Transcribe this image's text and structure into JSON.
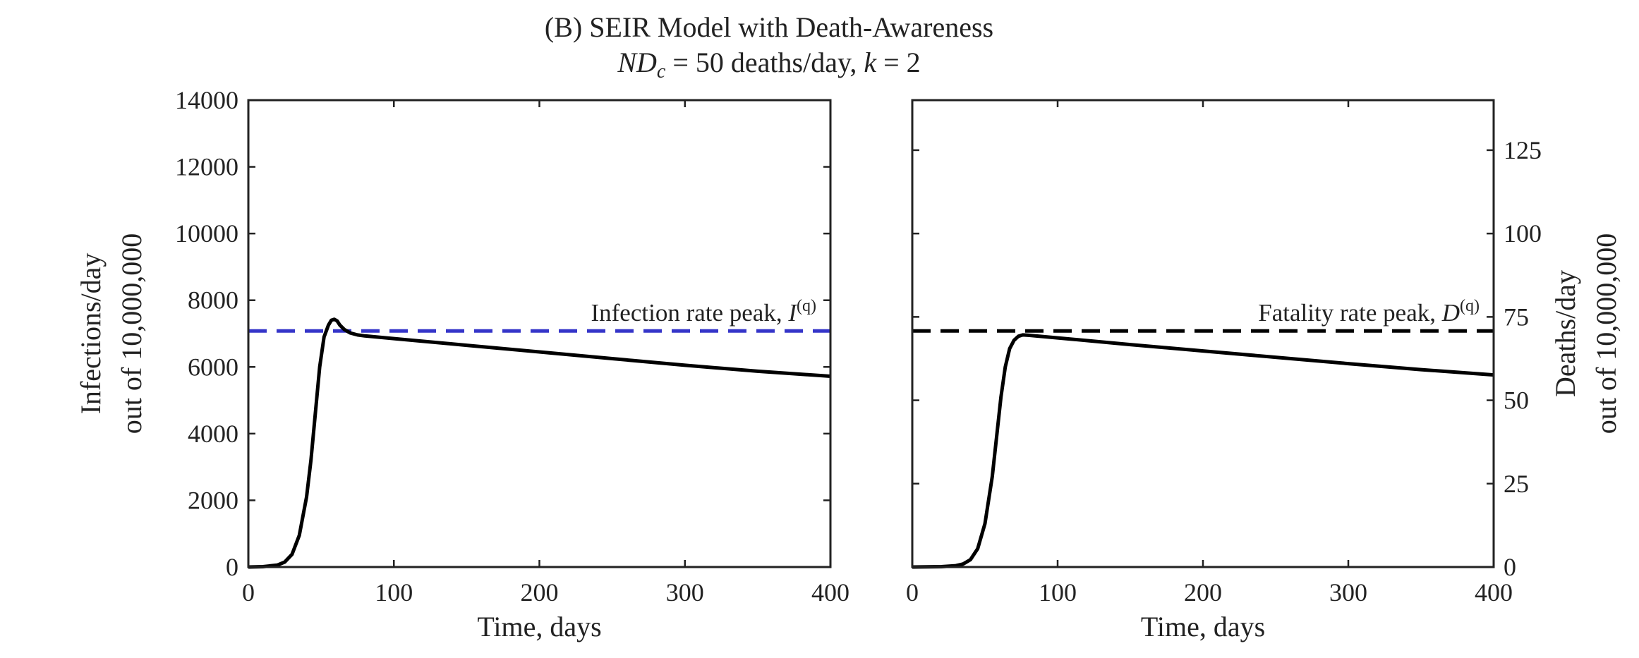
{
  "figure": {
    "title_line1": "(B) SEIR Model with Death-Awareness",
    "title_line2_math": "ND",
    "title_line2_sub": "c",
    "title_line2_rest1": " = 50 deaths/day, ",
    "title_line2_k": "k",
    "title_line2_rest2": " = 2"
  },
  "chart_data": [
    {
      "type": "line",
      "panel": "left",
      "xlabel": "Time, days",
      "ylabel_line1": "Infections/day",
      "ylabel_line2": "out of 10,000,000",
      "xlim": [
        0,
        400
      ],
      "ylim": [
        0,
        14000
      ],
      "xticks": [
        0,
        100,
        200,
        300,
        400
      ],
      "yticks": [
        0,
        2000,
        4000,
        6000,
        8000,
        10000,
        12000,
        14000
      ],
      "y_axis_side": "left",
      "annotation": "Infection rate peak, ",
      "annotation_symbol": "I",
      "annotation_superscript": "(q)",
      "peak_line": {
        "y": 7080,
        "color": "#3535c9",
        "style": "dashed"
      },
      "series": [
        {
          "color": "#000000",
          "x": [
            0,
            10,
            20,
            25,
            30,
            35,
            40,
            43,
            46,
            49,
            52,
            55,
            57,
            59,
            61,
            63,
            66,
            70,
            75,
            80,
            100,
            150,
            200,
            250,
            300,
            350,
            400
          ],
          "y": [
            0,
            10,
            60,
            150,
            380,
            950,
            2100,
            3200,
            4600,
            6000,
            6900,
            7250,
            7400,
            7430,
            7380,
            7250,
            7120,
            7020,
            6960,
            6930,
            6850,
            6650,
            6450,
            6250,
            6050,
            5870,
            5720
          ]
        }
      ]
    },
    {
      "type": "line",
      "panel": "right",
      "xlabel": "Time, days",
      "ylabel_line1": "Deaths/day",
      "ylabel_line2": "out of 10,000,000",
      "xlim": [
        0,
        400
      ],
      "ylim": [
        0,
        140
      ],
      "xticks": [
        0,
        100,
        200,
        300,
        400
      ],
      "yticks": [
        0,
        25,
        50,
        75,
        100,
        125
      ],
      "y_axis_side": "right",
      "annotation": "Fatality rate peak, ",
      "annotation_symbol": "D",
      "annotation_superscript": "(q)",
      "peak_line": {
        "y": 70.8,
        "color": "#000000",
        "style": "dashed"
      },
      "series": [
        {
          "color": "#000000",
          "x": [
            0,
            20,
            30,
            35,
            40,
            45,
            50,
            55,
            58,
            61,
            64,
            67,
            70,
            73,
            76,
            80,
            100,
            150,
            200,
            250,
            300,
            350,
            400
          ],
          "y": [
            0,
            0.1,
            0.4,
            0.9,
            2.2,
            5.5,
            13,
            27,
            39,
            51,
            60,
            65.5,
            68,
            69.2,
            69.6,
            69.5,
            68.7,
            66.7,
            64.8,
            62.9,
            61.0,
            59.2,
            57.6
          ]
        }
      ]
    }
  ]
}
